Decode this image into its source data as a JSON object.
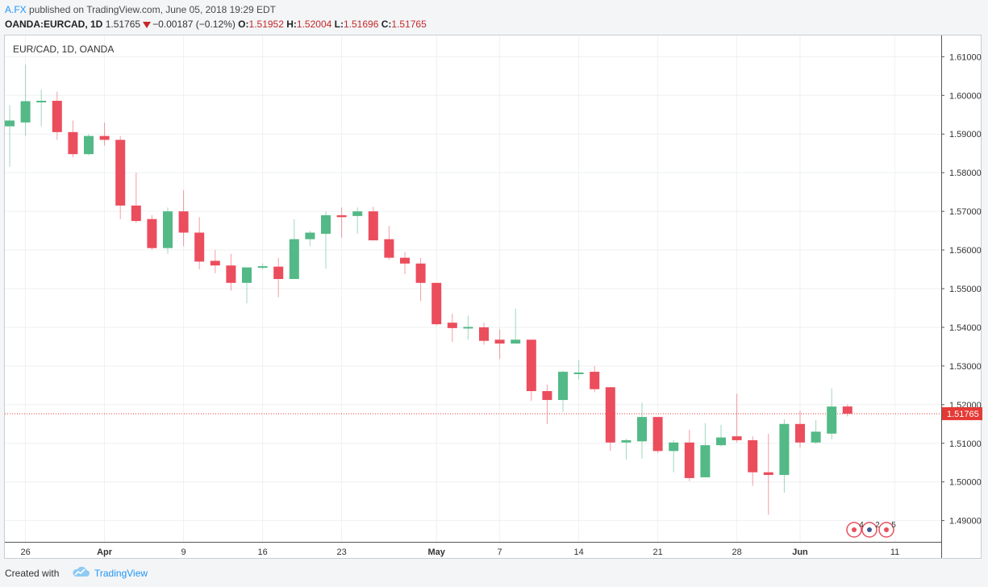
{
  "header": {
    "author": "A.FX",
    "published_text": "published on TradingView.com, June 05, 2018 19:29 EDT",
    "symbol": "OANDA:EURCAD, 1D",
    "last": "1.51765",
    "change": "−0.00187 (−0.12%)",
    "o_label": "O:",
    "o_value": "1.51952",
    "h_label": "H:",
    "h_value": "1.52004",
    "l_label": "L:",
    "l_value": "1.51696",
    "c_label": "C:",
    "c_value": "1.51765"
  },
  "footer": {
    "created": "Created with",
    "brand": "TradingView"
  },
  "chart_data": {
    "type": "candlestick",
    "title": "EUR/CAD, 1D, OANDA",
    "ylim": [
      1.4845,
      1.6155
    ],
    "grid": true,
    "colors": {
      "up": "#53b987",
      "down": "#eb4d5c",
      "grid": "#eef0f2",
      "price_line": "#e53935"
    },
    "y_ticks": [
      "1.61000",
      "1.60000",
      "1.59000",
      "1.58000",
      "1.57000",
      "1.56000",
      "1.55000",
      "1.54000",
      "1.53000",
      "1.52000",
      "1.51000",
      "1.50000",
      "1.49000"
    ],
    "x_ticks": [
      {
        "label": "26",
        "index": 1,
        "bold": false
      },
      {
        "label": "Apr",
        "index": 6,
        "bold": true
      },
      {
        "label": "9",
        "index": 11,
        "bold": false
      },
      {
        "label": "16",
        "index": 16,
        "bold": false
      },
      {
        "label": "23",
        "index": 21,
        "bold": false
      },
      {
        "label": "May",
        "index": 27,
        "bold": true
      },
      {
        "label": "7",
        "index": 31,
        "bold": false
      },
      {
        "label": "14",
        "index": 36,
        "bold": false
      },
      {
        "label": "21",
        "index": 41,
        "bold": false
      },
      {
        "label": "28",
        "index": 46,
        "bold": false
      },
      {
        "label": "Jun",
        "index": 50,
        "bold": true
      },
      {
        "label": "11",
        "index": 56,
        "bold": false
      }
    ],
    "current_price": 1.51765,
    "current_price_label": "1.51765",
    "candles": [
      {
        "o": 1.592,
        "h": 1.5975,
        "l": 1.5815,
        "c": 1.5935
      },
      {
        "o": 1.593,
        "h": 1.608,
        "l": 1.5895,
        "c": 1.5985
      },
      {
        "o": 1.5982,
        "h": 1.6015,
        "l": 1.592,
        "c": 1.5986
      },
      {
        "o": 1.5986,
        "h": 1.601,
        "l": 1.5885,
        "c": 1.5905
      },
      {
        "o": 1.5905,
        "h": 1.5935,
        "l": 1.584,
        "c": 1.5848
      },
      {
        "o": 1.5848,
        "h": 1.59,
        "l": 1.5845,
        "c": 1.5895
      },
      {
        "o": 1.5895,
        "h": 1.593,
        "l": 1.587,
        "c": 1.5885
      },
      {
        "o": 1.5885,
        "h": 1.5895,
        "l": 1.568,
        "c": 1.5715
      },
      {
        "o": 1.5715,
        "h": 1.58,
        "l": 1.567,
        "c": 1.5675
      },
      {
        "o": 1.568,
        "h": 1.569,
        "l": 1.56,
        "c": 1.5605
      },
      {
        "o": 1.5605,
        "h": 1.571,
        "l": 1.559,
        "c": 1.57
      },
      {
        "o": 1.57,
        "h": 1.5755,
        "l": 1.561,
        "c": 1.5645
      },
      {
        "o": 1.5645,
        "h": 1.5685,
        "l": 1.555,
        "c": 1.557
      },
      {
        "o": 1.5572,
        "h": 1.56,
        "l": 1.554,
        "c": 1.556
      },
      {
        "o": 1.556,
        "h": 1.559,
        "l": 1.5495,
        "c": 1.5515
      },
      {
        "o": 1.5515,
        "h": 1.5555,
        "l": 1.5462,
        "c": 1.5555
      },
      {
        "o": 1.5555,
        "h": 1.5565,
        "l": 1.555,
        "c": 1.5557
      },
      {
        "o": 1.5557,
        "h": 1.558,
        "l": 1.5478,
        "c": 1.5525
      },
      {
        "o": 1.5525,
        "h": 1.568,
        "l": 1.5525,
        "c": 1.5628
      },
      {
        "o": 1.5628,
        "h": 1.565,
        "l": 1.561,
        "c": 1.5645
      },
      {
        "o": 1.5642,
        "h": 1.57,
        "l": 1.5552,
        "c": 1.569
      },
      {
        "o": 1.569,
        "h": 1.571,
        "l": 1.5632,
        "c": 1.5685
      },
      {
        "o": 1.5688,
        "h": 1.571,
        "l": 1.5642,
        "c": 1.57
      },
      {
        "o": 1.57,
        "h": 1.5712,
        "l": 1.5625,
        "c": 1.5625
      },
      {
        "o": 1.5628,
        "h": 1.5662,
        "l": 1.5575,
        "c": 1.558
      },
      {
        "o": 1.558,
        "h": 1.5595,
        "l": 1.5538,
        "c": 1.5565
      },
      {
        "o": 1.5565,
        "h": 1.558,
        "l": 1.5468,
        "c": 1.5515
      },
      {
        "o": 1.5515,
        "h": 1.5515,
        "l": 1.5405,
        "c": 1.5408
      },
      {
        "o": 1.5412,
        "h": 1.5435,
        "l": 1.5362,
        "c": 1.5398
      },
      {
        "o": 1.5398,
        "h": 1.543,
        "l": 1.5368,
        "c": 1.54
      },
      {
        "o": 1.54,
        "h": 1.5412,
        "l": 1.5355,
        "c": 1.5365
      },
      {
        "o": 1.5368,
        "h": 1.5395,
        "l": 1.5318,
        "c": 1.5358
      },
      {
        "o": 1.5358,
        "h": 1.5448,
        "l": 1.5358,
        "c": 1.5368
      },
      {
        "o": 1.5368,
        "h": 1.5368,
        "l": 1.521,
        "c": 1.5235
      },
      {
        "o": 1.5235,
        "h": 1.5252,
        "l": 1.515,
        "c": 1.5212
      },
      {
        "o": 1.5212,
        "h": 1.5288,
        "l": 1.5182,
        "c": 1.5285
      },
      {
        "o": 1.528,
        "h": 1.5315,
        "l": 1.5265,
        "c": 1.5282
      },
      {
        "o": 1.5285,
        "h": 1.53,
        "l": 1.5232,
        "c": 1.524
      },
      {
        "o": 1.5245,
        "h": 1.5245,
        "l": 1.508,
        "c": 1.5102
      },
      {
        "o": 1.5102,
        "h": 1.5112,
        "l": 1.5058,
        "c": 1.5108
      },
      {
        "o": 1.5105,
        "h": 1.5205,
        "l": 1.506,
        "c": 1.5168
      },
      {
        "o": 1.5168,
        "h": 1.5168,
        "l": 1.5075,
        "c": 1.508
      },
      {
        "o": 1.508,
        "h": 1.5108,
        "l": 1.5025,
        "c": 1.5102
      },
      {
        "o": 1.5102,
        "h": 1.5135,
        "l": 1.5002,
        "c": 1.501
      },
      {
        "o": 1.5012,
        "h": 1.5152,
        "l": 1.5012,
        "c": 1.5095
      },
      {
        "o": 1.5095,
        "h": 1.5148,
        "l": 1.5092,
        "c": 1.5115
      },
      {
        "o": 1.5118,
        "h": 1.5228,
        "l": 1.5102,
        "c": 1.5108
      },
      {
        "o": 1.5108,
        "h": 1.5118,
        "l": 1.499,
        "c": 1.5025
      },
      {
        "o": 1.5025,
        "h": 1.5125,
        "l": 1.4915,
        "c": 1.5018
      },
      {
        "o": 1.5018,
        "h": 1.5162,
        "l": 1.4972,
        "c": 1.515
      },
      {
        "o": 1.515,
        "h": 1.5185,
        "l": 1.5088,
        "c": 1.5102
      },
      {
        "o": 1.5102,
        "h": 1.516,
        "l": 1.5098,
        "c": 1.513
      },
      {
        "o": 1.5125,
        "h": 1.5242,
        "l": 1.511,
        "c": 1.5195
      },
      {
        "o": 1.51952,
        "h": 1.52004,
        "l": 1.51696,
        "c": 1.51765
      }
    ],
    "events": {
      "left_count": "4",
      "middle_count": "2",
      "right_count": "5"
    }
  }
}
